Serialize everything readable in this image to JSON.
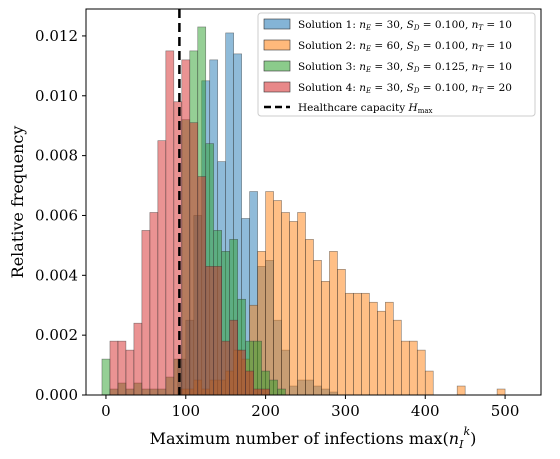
{
  "chart_data": {
    "type": "bar",
    "xlabel": "Maximum number of infections max(n_I^k)",
    "ylabel": "Relative frequency",
    "xlim": [
      -25,
      545
    ],
    "ylim": [
      0,
      0.0129
    ],
    "bin_width": 10,
    "xticks": [
      0,
      100,
      200,
      300,
      400,
      500
    ],
    "xtick_labels": [
      "0",
      "100",
      "200",
      "300",
      "400",
      "500"
    ],
    "yticks": [
      0,
      0.002,
      0.004,
      0.006,
      0.008,
      0.01,
      0.012
    ],
    "ytick_labels": [
      "0.000",
      "0.002",
      "0.004",
      "0.006",
      "0.008",
      "0.010",
      "0.012"
    ],
    "legend_position": "top-right",
    "reference_line": {
      "x": 92,
      "label": "Healthcare capacity H_max",
      "color": "#000000",
      "style": "dashed"
    },
    "series": [
      {
        "name": "Solution 1: n_E = 30, S_D = 0.100, n_T = 10",
        "color": "#1f77b4",
        "edges": [
          90,
          100,
          110,
          120,
          130,
          140,
          150,
          160,
          170,
          180,
          190,
          200,
          210,
          220,
          230,
          240,
          250,
          260,
          270,
          280
        ],
        "values": [
          0.0012,
          0.0025,
          0.006,
          0.0105,
          0.0112,
          0.0078,
          0.0121,
          0.0114,
          0.0059,
          0.0068,
          0.0043,
          0.0045,
          0.0025,
          0.0015,
          0.0003,
          0.0005,
          0.0005,
          0.0003,
          0.0002,
          0.0001
        ]
      },
      {
        "name": "Solution 2: n_E = 60, S_D = 0.100, n_T = 10",
        "color": "#ff7f0e",
        "edges": [
          90,
          100,
          110,
          120,
          130,
          140,
          150,
          160,
          170,
          180,
          190,
          200,
          210,
          220,
          230,
          240,
          250,
          260,
          270,
          280,
          290,
          300,
          310,
          320,
          330,
          340,
          350,
          360,
          370,
          380,
          390,
          400,
          440,
          490
        ],
        "values": [
          0.0002,
          0.0002,
          0.0005,
          0.0002,
          0.0005,
          0.0005,
          0.0008,
          0.0015,
          0.0012,
          0.003,
          0.0048,
          0.0068,
          0.0065,
          0.0061,
          0.0058,
          0.0061,
          0.0052,
          0.0045,
          0.0038,
          0.0048,
          0.0042,
          0.0034,
          0.0034,
          0.0034,
          0.0031,
          0.0028,
          0.0031,
          0.0025,
          0.0018,
          0.0018,
          0.0015,
          0.0008,
          0.0003,
          0.0002
        ]
      },
      {
        "name": "Solution 3: n_E = 30, S_D = 0.125, n_T = 10",
        "color": "#2ca02c",
        "edges": [
          -5,
          5,
          15,
          25,
          35,
          45,
          55,
          65,
          75,
          85,
          95,
          105,
          115,
          125,
          135,
          145,
          155,
          165,
          175,
          185,
          195,
          205,
          215
        ],
        "values": [
          0.0012,
          0.0002,
          0.0004,
          0.0002,
          0.0004,
          0.0002,
          0.0002,
          0.0002,
          0.0006,
          0.0012,
          0.0092,
          0.0115,
          0.0123,
          0.0084,
          0.0055,
          0.0048,
          0.0052,
          0.0032,
          0.0018,
          0.0018,
          0.0008,
          0.0005,
          0.0002
        ]
      },
      {
        "name": "Solution 4: n_E = 30, S_D = 0.100, n_T = 20",
        "color": "#d62728",
        "edges": [
          5,
          15,
          25,
          35,
          45,
          55,
          65,
          75,
          85,
          95,
          105,
          115,
          125,
          135,
          145,
          155,
          165,
          175,
          185,
          195
        ],
        "values": [
          0.0018,
          0.0018,
          0.0015,
          0.0024,
          0.0055,
          0.0061,
          0.0085,
          0.0115,
          0.0098,
          0.0112,
          0.0091,
          0.0073,
          0.0043,
          0.0043,
          0.0018,
          0.0025,
          0.0015,
          0.0008,
          0.0002,
          0.0002
        ]
      }
    ]
  }
}
